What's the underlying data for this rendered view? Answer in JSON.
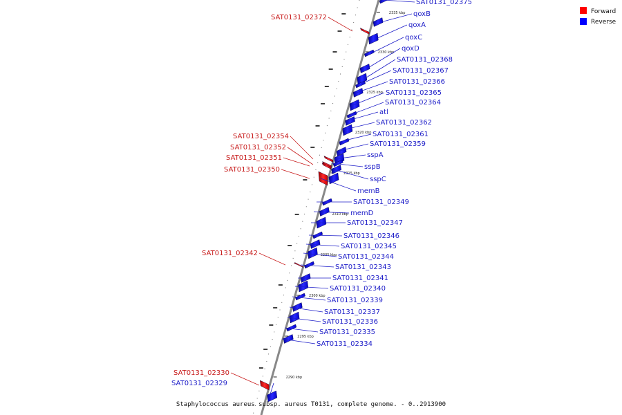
{
  "legend": {
    "forward_label": "Forward",
    "reverse_label": "Reverse",
    "forward_color": "#ff0000",
    "reverse_color": "#0000ff"
  },
  "caption": "Staphylococcus aureus subsp. aureus T0131, complete genome. - 0..2913900",
  "scale_labels": [
    "2335 kbp",
    "2330 kbp",
    "2325 kbp",
    "2320 kbp",
    "2315 kbp",
    "2310 kbp",
    "2305 kbp",
    "2300 kbp",
    "2295 kbp",
    "2290 kbp"
  ],
  "reverse_genes": [
    "SAT0131_02375",
    "qoxB",
    "qoxA",
    "qoxC",
    "qoxD",
    "SAT0131_02368",
    "SAT0131_02367",
    "SAT0131_02366",
    "SAT0131_02365",
    "SAT0131_02364",
    "atl",
    "SAT0131_02362",
    "SAT0131_02361",
    "SAT0131_02359",
    "sspA",
    "sspB",
    "sspC",
    "memB",
    "SAT0131_02349",
    "memD",
    "SAT0131_02347",
    "SAT0131_02346",
    "SAT0131_02345",
    "SAT0131_02344",
    "SAT0131_02343",
    "SAT0131_02341",
    "SAT0131_02340",
    "SAT0131_02339",
    "SAT0131_02337",
    "SAT0131_02336",
    "SAT0131_02335",
    "SAT0131_02334",
    "SAT0131_02329"
  ],
  "forward_genes": [
    "SAT0131_02372",
    "SAT0131_02354",
    "SAT0131_02352",
    "SAT0131_02351",
    "SAT0131_02350",
    "SAT0131_02342",
    "SAT0131_02330"
  ]
}
